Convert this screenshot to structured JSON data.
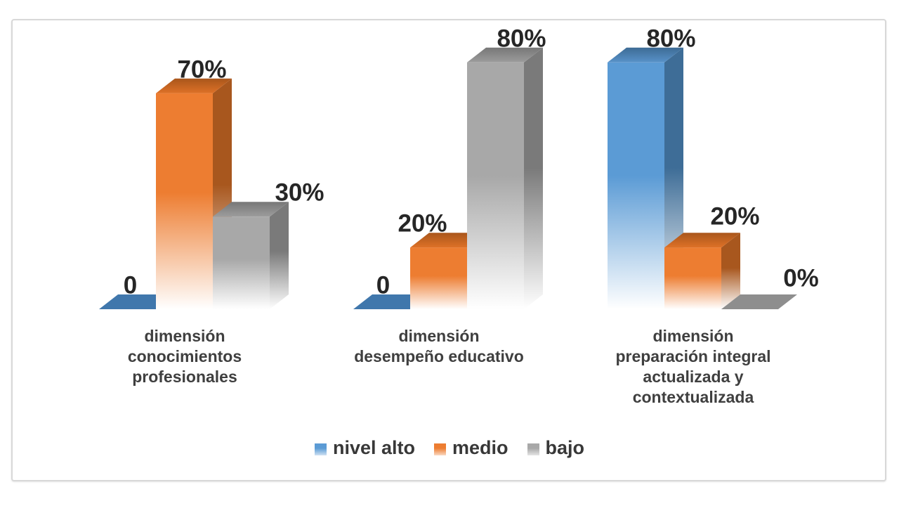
{
  "chart_data": {
    "type": "bar",
    "effect": "3d-column",
    "title": "",
    "xlabel": "",
    "ylabel": "",
    "ylim": [
      0,
      100
    ],
    "grid": false,
    "value_axis_visible": false,
    "categories": [
      "dimensión conocimientos profesionales",
      "dimensión desempeño educativo",
      "dimensión preparación integral actualizada y contextualizada"
    ],
    "category_lines": [
      [
        "dimensión",
        "conocimientos",
        "profesionales"
      ],
      [
        "dimensión",
        "desempeño educativo"
      ],
      [
        "dimensión",
        "preparación integral",
        "actualizada y",
        "contextualizada"
      ]
    ],
    "series": [
      {
        "name": "nivel alto",
        "values": [
          0,
          0,
          80
        ],
        "point_labels": [
          "0",
          "0",
          "80%"
        ],
        "colors": {
          "front": "#5B9BD5",
          "side": "#3E6D97",
          "top_front": "#5892C9",
          "top_back": "#3D6B95",
          "tile": "#4077AC"
        }
      },
      {
        "name": "medio",
        "values": [
          70,
          20,
          20
        ],
        "point_labels": [
          "70%",
          "20%",
          "20%"
        ],
        "colors": {
          "front": "#ED7D31",
          "side": "#A8571E",
          "top_front": "#DE7127",
          "top_back": "#A9561B",
          "tile": "#C9661F"
        }
      },
      {
        "name": "bajo",
        "values": [
          30,
          80,
          0
        ],
        "point_labels": [
          "30%",
          "80%",
          "0%"
        ],
        "colors": {
          "front": "#A8A8A8",
          "side": "#7A7A7A",
          "top_front": "#9C9C9C",
          "top_back": "#777777",
          "tile": "#8E8E8E"
        }
      }
    ],
    "legend": {
      "position": "bottom",
      "items": [
        "nivel alto",
        "medio",
        "bajo"
      ]
    }
  },
  "style_colors": {
    "value_label_text": "#262626",
    "category_label_text": "#3F3F3F",
    "legend_text": "#383838",
    "frame_border": "#D8D8D8",
    "background": "#FFFFFF"
  }
}
